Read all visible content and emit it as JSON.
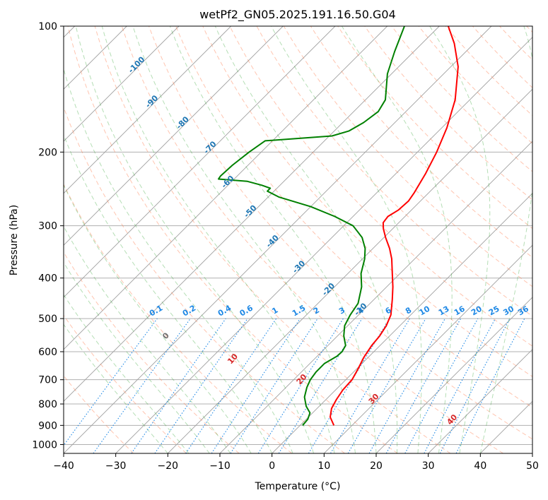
{
  "chart_data": {
    "type": "line",
    "title": "wetPf2_GN05.2025.191.16.50.G04",
    "xlabel": "Temperature (°C)",
    "ylabel": "Pressure (hPa)",
    "xlim": [
      -40,
      50
    ],
    "ylim": [
      1050,
      100
    ],
    "y_scale": "log",
    "x_ticks": [
      -40,
      -30,
      -20,
      -10,
      0,
      10,
      20,
      30,
      40,
      50
    ],
    "y_ticks": [
      100,
      200,
      300,
      400,
      500,
      600,
      700,
      800,
      900,
      1000
    ],
    "grid": true,
    "skew_t": true,
    "colors": {
      "temperature": "#ff0000",
      "dewpoint": "#008000",
      "dry_adiabat": "#ff7f50",
      "moist_adiabat": "#2ca02c",
      "mixing_ratio": "#1e88e5",
      "isotherm_label": "#1f77b4",
      "dry_adiabat_label": "#d62728",
      "isobar_grid": "#b0b0b0"
    },
    "series": [
      {
        "name": "",
        "role": "temperature",
        "color": "#ff0000",
        "points": [
          {
            "p": 900,
            "t": 6.5
          },
          {
            "p": 860,
            "t": 4.2
          },
          {
            "p": 820,
            "t": 2.8
          },
          {
            "p": 780,
            "t": 2.0
          },
          {
            "p": 740,
            "t": 1.4
          },
          {
            "p": 700,
            "t": 1.2
          },
          {
            "p": 660,
            "t": 0.3
          },
          {
            "p": 620,
            "t": -0.8
          },
          {
            "p": 580,
            "t": -1.6
          },
          {
            "p": 550,
            "t": -1.9
          },
          {
            "p": 520,
            "t": -2.6
          },
          {
            "p": 490,
            "t": -3.8
          },
          {
            "p": 450,
            "t": -6.5
          },
          {
            "p": 420,
            "t": -8.8
          },
          {
            "p": 390,
            "t": -11.5
          },
          {
            "p": 360,
            "t": -14.4
          },
          {
            "p": 340,
            "t": -16.8
          },
          {
            "p": 320,
            "t": -19.7
          },
          {
            "p": 305,
            "t": -21.8
          },
          {
            "p": 295,
            "t": -23.0
          },
          {
            "p": 285,
            "t": -23.3
          },
          {
            "p": 275,
            "t": -22.5
          },
          {
            "p": 262,
            "t": -22.3
          },
          {
            "p": 250,
            "t": -22.8
          },
          {
            "p": 225,
            "t": -24.3
          },
          {
            "p": 200,
            "t": -26.3
          },
          {
            "p": 175,
            "t": -29.0
          },
          {
            "p": 150,
            "t": -32.8
          },
          {
            "p": 125,
            "t": -38.6
          },
          {
            "p": 110,
            "t": -43.8
          },
          {
            "p": 100,
            "t": -48.3
          }
        ]
      },
      {
        "name": "",
        "role": "dewpoint",
        "color": "#008000",
        "points": [
          {
            "p": 900,
            "t": 0.5
          },
          {
            "p": 870,
            "t": 0.3
          },
          {
            "p": 840,
            "t": -0.5
          },
          {
            "p": 810,
            "t": -2.5
          },
          {
            "p": 770,
            "t": -4.6
          },
          {
            "p": 730,
            "t": -6.0
          },
          {
            "p": 700,
            "t": -6.8
          },
          {
            "p": 670,
            "t": -7.2
          },
          {
            "p": 640,
            "t": -7.2
          },
          {
            "p": 615,
            "t": -6.2
          },
          {
            "p": 600,
            "t": -6.1
          },
          {
            "p": 580,
            "t": -6.6
          },
          {
            "p": 550,
            "t": -8.8
          },
          {
            "p": 520,
            "t": -10.6
          },
          {
            "p": 490,
            "t": -11.6
          },
          {
            "p": 460,
            "t": -12.3
          },
          {
            "p": 420,
            "t": -14.8
          },
          {
            "p": 390,
            "t": -17.5
          },
          {
            "p": 360,
            "t": -19.6
          },
          {
            "p": 340,
            "t": -21.5
          },
          {
            "p": 320,
            "t": -24.2
          },
          {
            "p": 300,
            "t": -28.2
          },
          {
            "p": 285,
            "t": -33.5
          },
          {
            "p": 270,
            "t": -40.0
          },
          {
            "p": 256,
            "t": -48.0
          },
          {
            "p": 248,
            "t": -51.3
          },
          {
            "p": 244,
            "t": -51.3
          },
          {
            "p": 240,
            "t": -53.5
          },
          {
            "p": 235,
            "t": -57.0
          },
          {
            "p": 232,
            "t": -63.0
          },
          {
            "p": 228,
            "t": -63.2
          },
          {
            "p": 215,
            "t": -63.0
          },
          {
            "p": 200,
            "t": -62.3
          },
          {
            "p": 188,
            "t": -61.4
          },
          {
            "p": 183,
            "t": -49.5
          },
          {
            "p": 178,
            "t": -47.2
          },
          {
            "p": 170,
            "t": -46.0
          },
          {
            "p": 160,
            "t": -45.3
          },
          {
            "p": 150,
            "t": -46.2
          },
          {
            "p": 130,
            "t": -50.8
          },
          {
            "p": 115,
            "t": -53.7
          },
          {
            "p": 100,
            "t": -56.7
          }
        ]
      }
    ],
    "isotherm_labels": [
      "-100",
      "-90",
      "-80",
      "-70",
      "-60",
      "-50",
      "-40",
      "-30",
      "-20",
      "-10"
    ],
    "isotherm_label_values": [
      -100,
      -90,
      -80,
      -70,
      -60,
      -50,
      -40,
      -30,
      -20,
      -10
    ],
    "mixing_ratio_labels": [
      "0.1",
      "0.2",
      "0.4",
      "0.6",
      "1",
      "1.5",
      "2",
      "3",
      "4",
      "6",
      "8",
      "10",
      "13",
      "16",
      "20",
      "25",
      "30",
      "36"
    ],
    "mixing_ratio_values": [
      0.1,
      0.2,
      0.4,
      0.6,
      1,
      1.5,
      2,
      3,
      4,
      6,
      8,
      10,
      13,
      16,
      20,
      25,
      30,
      36
    ],
    "dry_adiabat_labels": [
      "0",
      "10",
      "20",
      "30",
      "40"
    ],
    "dry_adiabat_label_values": [
      0,
      10,
      20,
      30,
      40
    ]
  }
}
